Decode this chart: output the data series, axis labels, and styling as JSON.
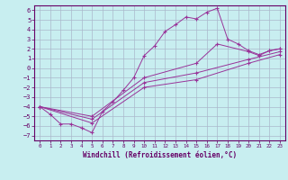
{
  "xlabel": "Windchill (Refroidissement éolien,°C)",
  "bg_color": "#c8eef0",
  "line_color": "#993399",
  "grid_color": "#aab8cc",
  "xlim": [
    -0.5,
    23.5
  ],
  "ylim": [
    -7.5,
    6.5
  ],
  "xticks": [
    0,
    1,
    2,
    3,
    4,
    5,
    6,
    7,
    8,
    9,
    10,
    11,
    12,
    13,
    14,
    15,
    16,
    17,
    18,
    19,
    20,
    21,
    22,
    23
  ],
  "yticks": [
    -7,
    -6,
    -5,
    -4,
    -3,
    -2,
    -1,
    0,
    1,
    2,
    3,
    4,
    5,
    6
  ],
  "main_x": [
    0,
    1,
    2,
    3,
    4,
    5,
    6,
    7,
    8,
    9,
    10,
    11,
    12,
    13,
    14,
    15,
    16,
    17,
    18,
    19,
    20,
    21,
    22,
    23
  ],
  "main_y": [
    -4.0,
    -4.8,
    -5.8,
    -5.8,
    -6.2,
    -6.7,
    -4.5,
    -3.5,
    -2.3,
    -1.0,
    1.3,
    2.3,
    3.8,
    4.5,
    5.3,
    5.1,
    5.8,
    6.2,
    3.0,
    2.5,
    1.8,
    1.4,
    1.8,
    2.0
  ],
  "line2_x": [
    0,
    5,
    10,
    15,
    17,
    20,
    21,
    22,
    23
  ],
  "line2_y": [
    -4.0,
    -5.0,
    -1.0,
    0.5,
    2.5,
    1.7,
    1.3,
    1.8,
    2.0
  ],
  "line3_x": [
    0,
    5,
    10,
    15,
    20,
    23
  ],
  "line3_y": [
    -4.0,
    -5.3,
    -1.5,
    -0.5,
    0.9,
    1.7
  ],
  "line4_x": [
    0,
    5,
    10,
    15,
    20,
    23
  ],
  "line4_y": [
    -4.0,
    -5.7,
    -2.0,
    -1.2,
    0.5,
    1.4
  ]
}
